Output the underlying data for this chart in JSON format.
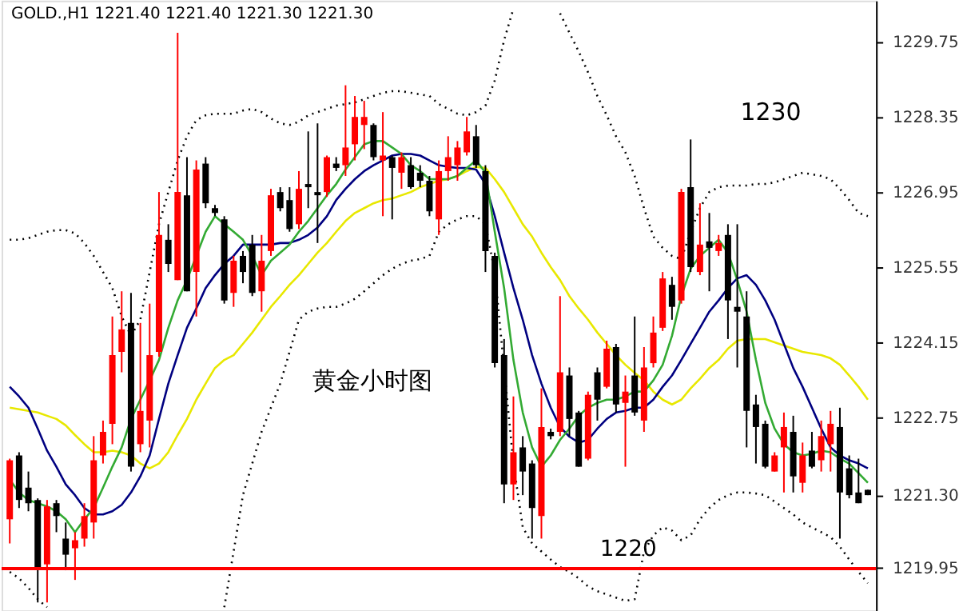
{
  "chart_data": {
    "type": "candlestick",
    "title": "GOLD.,H1  1221.40 1221.40 1221.30 1221.30",
    "categories": [
      null,
      null,
      null,
      null,
      null,
      null,
      null,
      null,
      null,
      null,
      null,
      null,
      null,
      null,
      null,
      null,
      null,
      null,
      null,
      null,
      null,
      null,
      null,
      null,
      null,
      null,
      null,
      null,
      null,
      null,
      null,
      null,
      null,
      null,
      null,
      null,
      null,
      null,
      null,
      null,
      null,
      null,
      null,
      null,
      null,
      null,
      null,
      null,
      null,
      null,
      null,
      null,
      null,
      null,
      null,
      null,
      null,
      null,
      null,
      null,
      null,
      null,
      null,
      null,
      null,
      null,
      null,
      null,
      null,
      null,
      null,
      null,
      null,
      null,
      null,
      null,
      null,
      null,
      null,
      null,
      null,
      null,
      null,
      null,
      null,
      null,
      null,
      null,
      null,
      null,
      null,
      null,
      null
    ],
    "ohlc": [
      [
        1220.85,
        1221.98,
        1220.4,
        1221.95
      ],
      [
        1222.04,
        1222.1,
        1221.06,
        1221.21
      ],
      [
        1221.44,
        1221.74,
        1221.0,
        1221.15
      ],
      [
        1221.21,
        1221.24,
        1219.3,
        1219.9
      ],
      [
        1220.01,
        1221.21,
        1219.3,
        1221.09
      ],
      [
        1221.15,
        1221.21,
        1220.61,
        1220.91
      ],
      [
        1220.49,
        1220.79,
        1219.9,
        1220.19
      ],
      [
        1220.31,
        1220.61,
        1219.72,
        1220.46
      ],
      [
        1220.49,
        1221.15,
        1220.34,
        1220.91
      ],
      [
        1220.79,
        1222.4,
        1220.49,
        1221.95
      ],
      [
        1222.04,
        1222.69,
        1221.89,
        1222.48
      ],
      [
        1222.63,
        1224.63,
        1222.25,
        1223.91
      ],
      [
        1223.97,
        1225.1,
        1223.59,
        1224.39
      ],
      [
        1224.51,
        1225.07,
        1221.74,
        1221.83
      ],
      [
        1222.25,
        1224.51,
        1222.1,
        1222.87
      ],
      [
        1222.69,
        1224.87,
        1222.19,
        1223.91
      ],
      [
        1223.97,
        1226.95,
        1223.88,
        1226.15
      ],
      [
        1226.06,
        1226.35,
        1225.46,
        1225.61
      ],
      [
        1225.31,
        1229.92,
        1225.31,
        1226.95
      ],
      [
        1226.89,
        1227.6,
        1225.1,
        1225.1
      ],
      [
        1225.46,
        1227.54,
        1224.63,
        1227.37
      ],
      [
        1227.48,
        1227.6,
        1226.65,
        1226.74
      ],
      [
        1226.65,
        1226.71,
        1226.5,
        1226.56
      ],
      [
        1226.44,
        1226.5,
        1224.87,
        1224.93
      ],
      [
        1225.07,
        1225.76,
        1224.81,
        1225.67
      ],
      [
        1225.76,
        1225.85,
        1225.25,
        1225.46
      ],
      [
        1225.97,
        1226.15,
        1225.01,
        1225.07
      ],
      [
        1225.1,
        1226.15,
        1224.72,
        1225.67
      ],
      [
        1225.85,
        1227.01,
        1225.76,
        1226.89
      ],
      [
        1226.95,
        1227.04,
        1226.59,
        1226.65
      ],
      [
        1226.8,
        1227.04,
        1226.21,
        1226.26
      ],
      [
        1226.35,
        1227.34,
        1226.26,
        1227.01
      ],
      [
        1227.1,
        1228.08,
        1226.65,
        1227.04
      ],
      [
        1226.95,
        1228.23,
        1226.0,
        1226.89
      ],
      [
        1226.95,
        1227.63,
        1226.86,
        1227.6
      ],
      [
        1227.48,
        1227.6,
        1227.34,
        1227.4
      ],
      [
        1227.45,
        1228.94,
        1227.25,
        1227.78
      ],
      [
        1227.84,
        1228.74,
        1227.54,
        1228.35
      ],
      [
        1228.2,
        1228.65,
        1227.75,
        1228.35
      ],
      [
        1228.2,
        1228.23,
        1227.54,
        1227.6
      ],
      [
        1227.54,
        1228.44,
        1226.5,
        1227.63
      ],
      [
        1227.6,
        1227.63,
        1226.44,
        1227.4
      ],
      [
        1227.31,
        1227.69,
        1227.01,
        1227.6
      ],
      [
        1227.45,
        1227.6,
        1227.01,
        1227.04
      ],
      [
        1227.31,
        1227.45,
        1227.04,
        1227.16
      ],
      [
        1227.16,
        1227.25,
        1226.5,
        1226.59
      ],
      [
        1226.44,
        1227.54,
        1226.15,
        1227.34
      ],
      [
        1227.34,
        1227.99,
        1227.16,
        1227.6
      ],
      [
        1227.45,
        1227.9,
        1227.16,
        1227.78
      ],
      [
        1227.69,
        1228.35,
        1227.63,
        1228.08
      ],
      [
        1227.99,
        1228.2,
        1227.4,
        1227.45
      ],
      [
        1227.34,
        1227.45,
        1225.46,
        1225.85
      ],
      [
        1225.76,
        1225.82,
        1223.68,
        1223.76
      ],
      [
        1223.91,
        1224.21,
        1221.15,
        1221.5
      ],
      [
        1221.5,
        1223.14,
        1221.21,
        1222.1
      ],
      [
        1222.19,
        1222.4,
        1221.3,
        1221.74
      ],
      [
        1221.89,
        1221.95,
        1220.49,
        1221.06
      ],
      [
        1220.91,
        1223.29,
        1220.49,
        1222.57
      ],
      [
        1222.48,
        1222.54,
        1222.34,
        1222.4
      ],
      [
        1222.48,
        1225.01,
        1222.4,
        1223.59
      ],
      [
        1223.53,
        1223.68,
        1222.4,
        1222.72
      ],
      [
        1222.84,
        1222.87,
        1221.83,
        1221.83
      ],
      [
        1221.98,
        1223.23,
        1221.95,
        1223.17
      ],
      [
        1223.59,
        1223.68,
        1222.69,
        1223.08
      ],
      [
        1223.32,
        1224.18,
        1223.29,
        1224.03
      ],
      [
        1224.06,
        1224.12,
        1222.84,
        1222.99
      ],
      [
        1223.02,
        1223.53,
        1221.83,
        1223.23
      ],
      [
        1223.53,
        1224.63,
        1222.78,
        1222.84
      ],
      [
        1222.69,
        1224.06,
        1222.48,
        1223.68
      ],
      [
        1223.76,
        1224.63,
        1223.68,
        1224.33
      ],
      [
        1224.42,
        1225.46,
        1224.36,
        1225.34
      ],
      [
        1225.22,
        1225.37,
        1224.57,
        1224.81
      ],
      [
        1224.93,
        1227.01,
        1224.87,
        1226.95
      ],
      [
        1227.04,
        1227.93,
        1225.46,
        1225.55
      ],
      [
        1225.46,
        1226.74,
        1225.4,
        1225.97
      ],
      [
        1226.03,
        1226.56,
        1225.1,
        1225.91
      ],
      [
        1225.85,
        1226.15,
        1225.76,
        1226.0
      ],
      [
        1226.15,
        1226.35,
        1224.21,
        1224.93
      ],
      [
        1224.81,
        1226.35,
        1223.68,
        1224.72
      ],
      [
        1224.63,
        1225.1,
        1222.19,
        1222.87
      ],
      [
        1222.99,
        1223.17,
        1221.89,
        1222.57
      ],
      [
        1222.63,
        1222.69,
        1221.8,
        1221.83
      ],
      [
        1221.74,
        1222.1,
        1221.74,
        1222.04
      ],
      [
        1222.19,
        1222.84,
        1221.35,
        1222.57
      ],
      [
        1222.48,
        1222.78,
        1221.35,
        1221.65
      ],
      [
        1221.53,
        1222.28,
        1221.35,
        1222.04
      ],
      [
        1222.13,
        1222.48,
        1221.8,
        1221.83
      ],
      [
        1221.95,
        1222.69,
        1221.74,
        1222.4
      ],
      [
        1222.25,
        1222.87,
        1221.74,
        1222.63
      ],
      [
        1222.57,
        1222.93,
        1220.49,
        1221.35
      ],
      [
        1221.8,
        1222.04,
        1221.24,
        1221.3
      ],
      [
        1221.35,
        1221.98,
        1221.15,
        1221.15
      ],
      [
        1221.4,
        1221.4,
        1221.3,
        1221.3
      ]
    ],
    "colors": [
      "#ff0000",
      "#000000",
      "#000000",
      "#000000",
      "#ff0000",
      "#000000",
      "#000000",
      "#ff0000",
      "#ff0000",
      "#ff0000",
      "#ff0000",
      "#ff0000",
      "#ff0000",
      "#000000",
      "#ff0000",
      "#ff0000",
      "#ff0000",
      "#000000",
      "#ff0000",
      "#000000",
      "#ff0000",
      "#000000",
      "#000000",
      "#000000",
      "#ff0000",
      "#000000",
      "#000000",
      "#ff0000",
      "#ff0000",
      "#000000",
      "#000000",
      "#ff0000",
      "#000000",
      "#000000",
      "#ff0000",
      "#000000",
      "#ff0000",
      "#ff0000",
      "#ff0000",
      "#000000",
      "#ff0000",
      "#000000",
      "#ff0000",
      "#000000",
      "#000000",
      "#000000",
      "#ff0000",
      "#ff0000",
      "#ff0000",
      "#ff0000",
      "#000000",
      "#000000",
      "#000000",
      "#000000",
      "#ff0000",
      "#000000",
      "#000000",
      "#ff0000",
      "#000000",
      "#ff0000",
      "#000000",
      "#000000",
      "#ff0000",
      "#000000",
      "#ff0000",
      "#000000",
      "#ff0000",
      "#000000",
      "#ff0000",
      "#ff0000",
      "#ff0000",
      "#000000",
      "#ff0000",
      "#000000",
      "#ff0000",
      "#000000",
      "#ff0000",
      "#000000",
      "#000000",
      "#000000",
      "#000000",
      "#000000",
      "#ff0000",
      "#ff0000",
      "#000000",
      "#ff0000",
      "#000000",
      "#ff0000",
      "#ff0000",
      "#000000",
      "#000000",
      "#000000",
      "#000000"
    ],
    "series": [
      {
        "type": "line",
        "color": "#000000",
        "line_style": "dotted",
        "values": [
          1226.06,
          1226.06,
          1226.09,
          1226.15,
          1226.21,
          1226.24,
          1226.24,
          1226.18,
          1226.0,
          1225.76,
          1225.46,
          1225.16,
          1224.63,
          1224.27,
          1224.57,
          1225.46,
          1226.35,
          1226.95,
          1227.54,
          1227.99,
          1228.29,
          1228.38,
          1228.41,
          1228.41,
          1228.41,
          1228.47,
          1228.5,
          1228.44,
          1228.32,
          1228.23,
          1228.2,
          1228.26,
          1228.38,
          1228.44,
          1228.5,
          1228.56,
          1228.59,
          1228.62,
          1228.68,
          1228.74,
          1228.8,
          1228.83,
          1228.83,
          1228.8,
          1228.77,
          1228.74,
          1228.59,
          1228.5,
          1228.41,
          1228.38,
          1228.44,
          1228.56,
          1229.03,
          1229.78,
          1230.37,
          null,
          null,
          null,
          null,
          1230.28,
          1229.92,
          1229.57,
          1229.18,
          1228.74,
          1228.38,
          1227.99,
          1227.69,
          1227.25,
          1226.65,
          1226.12,
          1225.91,
          1225.76,
          1225.7,
          1226.21,
          1226.65,
          1226.95,
          1227.04,
          1227.07,
          1227.07,
          1227.07,
          1227.1,
          1227.1,
          1227.13,
          1227.19,
          1227.25,
          1227.31,
          1227.28,
          1227.25,
          1227.19,
          1227.01,
          1226.8,
          1226.56,
          1226.5
        ]
      },
      {
        "type": "line",
        "color": "#000000",
        "line_style": "dotted",
        "values": [
          1219.87,
          1219.75,
          1219.57,
          1219.36,
          1219.21,
          null,
          null,
          null,
          null,
          null,
          null,
          null,
          null,
          null,
          null,
          null,
          null,
          null,
          null,
          null,
          null,
          null,
          null,
          1219.21,
          1220.25,
          1221.3,
          1221.89,
          1222.48,
          1222.93,
          1223.38,
          1223.97,
          1224.57,
          1224.72,
          1224.78,
          1224.81,
          1224.81,
          1224.87,
          1224.96,
          1225.1,
          1225.25,
          1225.4,
          1225.52,
          1225.61,
          1225.67,
          1225.7,
          1225.76,
          1226.21,
          1226.35,
          1226.44,
          1226.5,
          1226.5,
          1226.35,
          1225.46,
          1223.67,
          1221.89,
          1220.7,
          1220.4,
          1220.25,
          1220.1,
          1219.96,
          1219.87,
          1219.75,
          1219.6,
          1219.51,
          1219.45,
          1219.39,
          1219.33,
          1219.36,
          1220.25,
          1220.55,
          1220.7,
          1220.64,
          1220.46,
          1220.55,
          1220.85,
          1221.06,
          1221.21,
          1221.3,
          1221.35,
          1221.35,
          1221.33,
          1221.3,
          1221.18,
          1221.06,
          1220.94,
          1220.79,
          1220.7,
          1220.61,
          1220.52,
          1220.34,
          1220.1,
          1219.87,
          1219.66
        ]
      },
      {
        "type": "line",
        "color": "#e8e800",
        "line_style": "solid",
        "values": [
          1222.93,
          1222.9,
          1222.87,
          1222.84,
          1222.78,
          1222.72,
          1222.6,
          1222.42,
          1222.25,
          1222.1,
          1222.1,
          1222.13,
          1222.1,
          1222.04,
          1221.89,
          1221.8,
          1221.89,
          1222.1,
          1222.42,
          1222.72,
          1223.08,
          1223.38,
          1223.67,
          1223.82,
          1223.91,
          1224.12,
          1224.33,
          1224.57,
          1224.81,
          1225.01,
          1225.22,
          1225.4,
          1225.61,
          1225.82,
          1226.0,
          1226.21,
          1226.41,
          1226.56,
          1226.65,
          1226.74,
          1226.8,
          1226.83,
          1226.89,
          1226.95,
          1227.04,
          1227.1,
          1227.16,
          1227.19,
          1227.25,
          1227.34,
          1227.42,
          1227.4,
          1227.19,
          1226.95,
          1226.65,
          1226.35,
          1226.12,
          1225.82,
          1225.55,
          1225.31,
          1225.01,
          1224.78,
          1224.57,
          1224.33,
          1224.12,
          1223.91,
          1223.73,
          1223.58,
          1223.44,
          1223.23,
          1223.08,
          1222.99,
          1223.08,
          1223.29,
          1223.47,
          1223.67,
          1223.82,
          1224.03,
          1224.18,
          1224.21,
          1224.21,
          1224.21,
          1224.15,
          1224.09,
          1224.03,
          1223.97,
          1223.94,
          1223.91,
          1223.85,
          1223.73,
          1223.53,
          1223.32,
          1223.08
        ]
      },
      {
        "type": "line",
        "color": "#000080",
        "line_style": "solid",
        "values": [
          1223.32,
          1223.14,
          1222.93,
          1222.54,
          1222.13,
          1221.83,
          1221.5,
          1221.3,
          1221.06,
          1220.94,
          1220.94,
          1221.0,
          1221.12,
          1221.35,
          1221.65,
          1222.04,
          1222.72,
          1223.38,
          1223.91,
          1224.42,
          1224.78,
          1225.16,
          1225.4,
          1225.61,
          1225.76,
          1225.97,
          1225.97,
          1225.97,
          1225.97,
          1226.0,
          1226.0,
          1226.06,
          1226.15,
          1226.29,
          1226.5,
          1226.8,
          1227.01,
          1227.19,
          1227.34,
          1227.45,
          1227.54,
          1227.63,
          1227.66,
          1227.66,
          1227.63,
          1227.54,
          1227.45,
          1227.42,
          1227.4,
          1227.4,
          1227.37,
          1227.1,
          1226.5,
          1225.82,
          1225.16,
          1224.57,
          1223.91,
          1223.38,
          1222.93,
          1222.57,
          1222.39,
          1222.28,
          1222.33,
          1222.54,
          1222.72,
          1222.84,
          1222.87,
          1222.93,
          1222.93,
          1223.08,
          1223.32,
          1223.53,
          1223.82,
          1224.12,
          1224.42,
          1224.72,
          1224.93,
          1225.16,
          1225.34,
          1225.4,
          1225.22,
          1224.93,
          1224.57,
          1224.12,
          1223.67,
          1223.32,
          1222.93,
          1222.54,
          1222.19,
          1222.04,
          1221.95,
          1221.89,
          1221.8
        ]
      },
      {
        "type": "line",
        "color": "#33aa33",
        "line_style": "solid",
        "values": [
          1221.59,
          1221.35,
          1221.21,
          1221.15,
          1221.09,
          1221.0,
          1220.85,
          1220.61,
          1220.85,
          1221.06,
          1221.44,
          1221.83,
          1222.19,
          1222.72,
          1223.08,
          1223.44,
          1223.82,
          1224.42,
          1224.93,
          1225.31,
          1225.76,
          1226.21,
          1226.5,
          1226.35,
          1226.21,
          1226.06,
          1225.76,
          1225.4,
          1225.67,
          1225.82,
          1225.97,
          1226.21,
          1226.41,
          1226.65,
          1226.89,
          1227.1,
          1227.37,
          1227.6,
          1227.84,
          1227.9,
          1227.9,
          1227.78,
          1227.66,
          1227.45,
          1227.34,
          1227.19,
          1227.19,
          1227.19,
          1227.25,
          1227.4,
          1227.54,
          1227.31,
          1226.21,
          1225.16,
          1223.82,
          1222.84,
          1222.19,
          1221.83,
          1222.04,
          1222.33,
          1222.54,
          1222.78,
          1222.93,
          1223.02,
          1223.08,
          1223.08,
          1223.14,
          1223.23,
          1223.23,
          1223.44,
          1223.73,
          1224.27,
          1225.01,
          1225.52,
          1225.76,
          1225.91,
          1226.06,
          1225.82,
          1225.31,
          1224.72,
          1223.82,
          1223.02,
          1222.54,
          1222.25,
          1222.1,
          1222.04,
          1222.07,
          1222.13,
          1222.1,
          1221.98,
          1221.89,
          1221.71,
          1221.53
        ]
      }
    ],
    "ylim": [
      1219.15,
      1230.52
    ],
    "yticks": [
      1219.95,
      {
        "value": 1221.3,
        "label": "1221.30"
      },
      1222.75,
      1224.15,
      1225.55,
      1226.95,
      1228.35,
      1229.75
    ],
    "tick_labels": "y",
    "grid": false,
    "ref_lines": [
      {
        "axis": "y",
        "value": 1219.93,
        "label": "1220",
        "color": "#ff0000"
      }
    ],
    "annotations": [
      "黄金小时图",
      "1230"
    ]
  }
}
